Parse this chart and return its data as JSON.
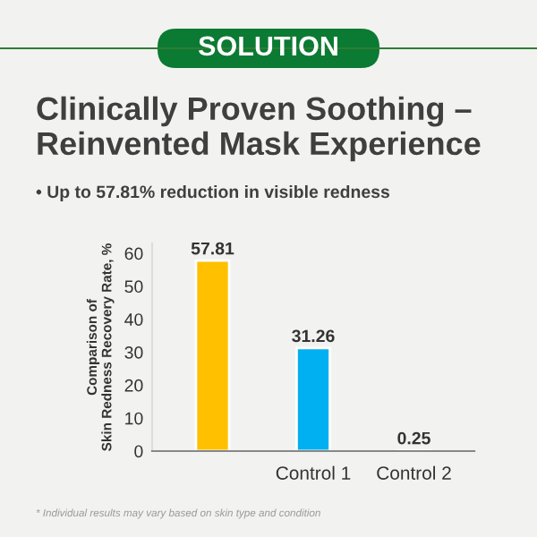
{
  "chart_data": {
    "type": "bar",
    "title": "Clinically Proven Soothing –\nReinvented Mask Experience",
    "subtitle": "• Up to 57.81% reduction in visible redness",
    "ylabel": "Comparison of\nSkin Redness Recovery Rate, %",
    "categories": [
      null,
      "Control 1",
      "Control 2"
    ],
    "values": [
      57.81,
      31.26,
      0.25
    ],
    "colors": [
      "#ffc000",
      "#00b0f0",
      "#4472c4"
    ],
    "data_labels": true,
    "ylim": [
      0,
      63
    ],
    "yticks": [
      0,
      10,
      20,
      30,
      40,
      50,
      60
    ],
    "grid": false,
    "annotations": [
      "SOLUTION",
      "* Individual results may vary based on skin type and condition"
    ]
  }
}
